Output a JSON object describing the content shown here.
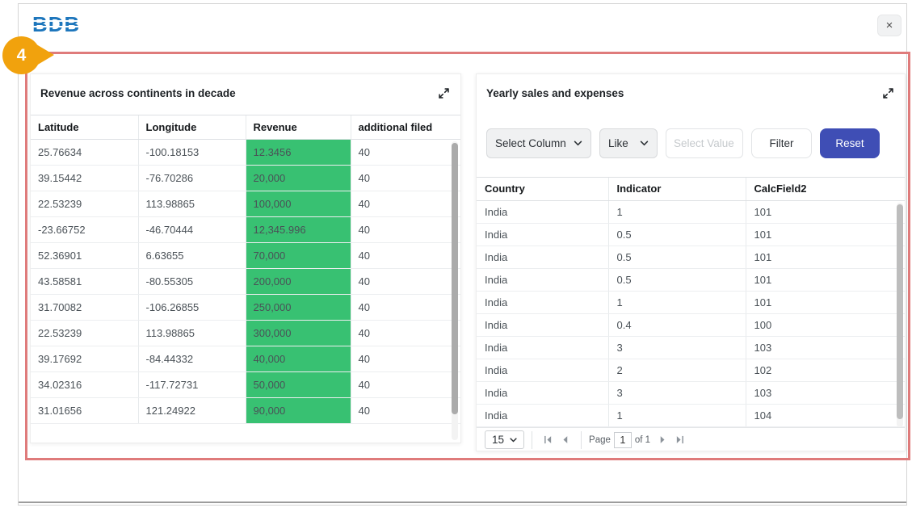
{
  "window": {
    "logo_text": "BDB",
    "close_icon": "×"
  },
  "annotation": {
    "number": "4"
  },
  "left_panel": {
    "title": "Revenue across continents in decade",
    "columns": [
      "Latitude",
      "Longitude",
      "Revenue",
      "additional filed"
    ],
    "rows": [
      [
        "25.76634",
        "-100.18153",
        "12.3456",
        "40"
      ],
      [
        "39.15442",
        "-76.70286",
        "20,000",
        "40"
      ],
      [
        "22.53239",
        "113.98865",
        "100,000",
        "40"
      ],
      [
        "-23.66752",
        "-46.70444",
        "12,345.996",
        "40"
      ],
      [
        "52.36901",
        "6.63655",
        "70,000",
        "40"
      ],
      [
        "43.58581",
        "-80.55305",
        "200,000",
        "40"
      ],
      [
        "31.70082",
        "-106.26855",
        "250,000",
        "40"
      ],
      [
        "22.53239",
        "113.98865",
        "300,000",
        "40"
      ],
      [
        "39.17692",
        "-84.44332",
        "40,000",
        "40"
      ],
      [
        "34.02316",
        "-117.72731",
        "50,000",
        "40"
      ],
      [
        "31.01656",
        "121.24922",
        "90,000",
        "40"
      ]
    ]
  },
  "right_panel": {
    "title": "Yearly sales and expenses",
    "filter": {
      "column_select": "Select Column",
      "operator_select": "Like",
      "value_placeholder": "Select Value",
      "filter_label": "Filter",
      "reset_label": "Reset"
    },
    "columns": [
      "Country",
      "Indicator",
      "CalcField2"
    ],
    "rows": [
      [
        "India",
        "1",
        "101"
      ],
      [
        "India",
        "0.5",
        "101"
      ],
      [
        "India",
        "0.5",
        "101"
      ],
      [
        "India",
        "0.5",
        "101"
      ],
      [
        "India",
        "1",
        "101"
      ],
      [
        "India",
        "0.4",
        "100"
      ],
      [
        "India",
        "3",
        "103"
      ],
      [
        "India",
        "2",
        "102"
      ],
      [
        "India",
        "3",
        "103"
      ],
      [
        "India",
        "1",
        "104"
      ]
    ],
    "pagination": {
      "page_size": "15",
      "page_label": "Page",
      "current_page": "1",
      "of_label": "of 1"
    }
  },
  "icons": {
    "close": "×",
    "expand": "diagonal-expand-arrows",
    "chevron_down": "chevron-down",
    "first_page": "bar-left-triangle",
    "prev_page": "left-triangle",
    "next_page": "right-triangle",
    "last_page": "bar-right-triangle"
  },
  "colors": {
    "annotation_red": "#df7b7b",
    "badge_orange": "#f1a20d",
    "highlight_green": "#38c172",
    "reset_blue": "#3f4eb5",
    "logo_blue": "#1d76bc"
  }
}
